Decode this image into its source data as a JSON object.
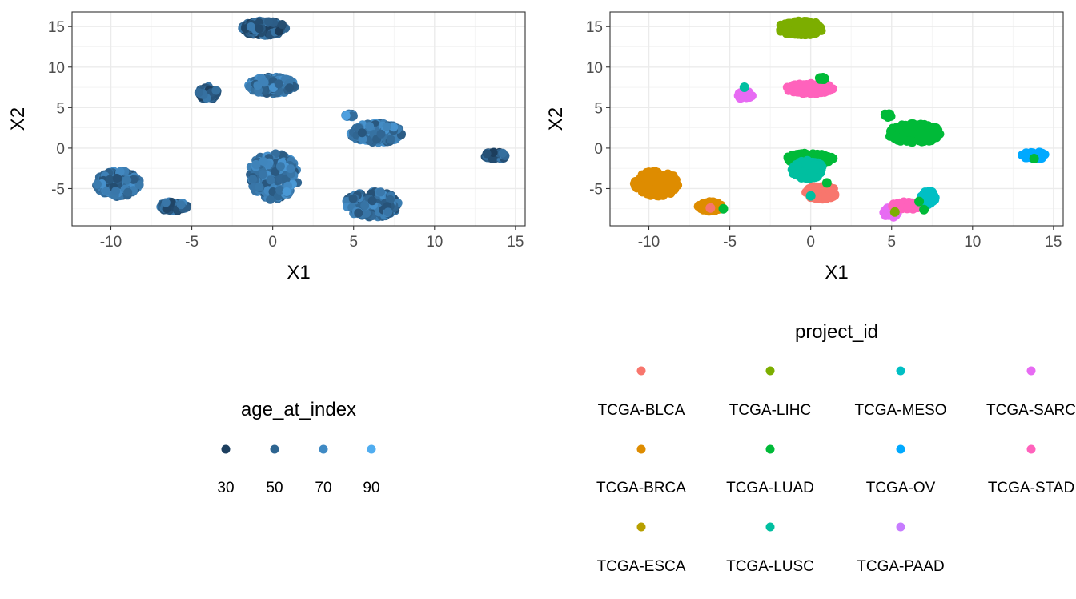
{
  "chart_data": [
    {
      "type": "scatter",
      "xlabel": "X1",
      "ylabel": "X2",
      "xlim": [
        -12.4,
        15.6
      ],
      "ylim": [
        -9.6,
        16.8
      ],
      "x_ticks": [
        -10,
        -5,
        0,
        5,
        10,
        15
      ],
      "y_ticks": [
        -5,
        0,
        5,
        10,
        15
      ],
      "x_tick_labels": [
        "-10",
        "-5",
        "0",
        "5",
        "10",
        "15"
      ],
      "y_tick_labels": [
        "-5",
        "0",
        "5",
        "10",
        "15"
      ],
      "grid": true,
      "legend": {
        "title": "age_at_index",
        "position": "bottom",
        "type": "continuous",
        "range": [
          20,
          100
        ],
        "color_low": "#132b43",
        "color_high": "#56b1f7",
        "entries": [
          {
            "label": "30",
            "value": 30,
            "color": "#1d3f5f"
          },
          {
            "label": "50",
            "value": 50,
            "color": "#2e6591"
          },
          {
            "label": "70",
            "value": 70,
            "color": "#3f8ac4"
          },
          {
            "label": "90",
            "value": 90,
            "color": "#50adf0"
          }
        ]
      },
      "clusters": [
        {
          "x": [
            -10.9,
            -8.2
          ],
          "y": [
            -6.0,
            -2.8
          ],
          "value": 60
        },
        {
          "x": [
            -7.0,
            -5.3
          ],
          "y": [
            -7.8,
            -6.6
          ],
          "value": 55
        },
        {
          "x": [
            -4.6,
            -3.4
          ],
          "y": [
            6.0,
            7.6
          ],
          "value": 50
        },
        {
          "x": [
            -2.0,
            0.8
          ],
          "y": [
            13.9,
            15.7
          ],
          "value": 50
        },
        {
          "x": [
            -1.5,
            1.4
          ],
          "y": [
            6.7,
            8.8
          ],
          "value": 65
        },
        {
          "x": [
            -1.5,
            1.6
          ],
          "y": [
            -6.4,
            -0.6
          ],
          "value": 65
        },
        {
          "x": [
            4.5,
            5.0
          ],
          "y": [
            3.8,
            4.3
          ],
          "value": 70
        },
        {
          "x": [
            4.8,
            8.0
          ],
          "y": [
            0.6,
            3.1
          ],
          "value": 65
        },
        {
          "x": [
            4.5,
            7.8
          ],
          "y": [
            -8.6,
            -5.3
          ],
          "value": 60
        },
        {
          "x": [
            13.0,
            14.5
          ],
          "y": [
            -1.4,
            -0.4
          ],
          "value": 50
        }
      ]
    },
    {
      "type": "scatter",
      "xlabel": "X1",
      "ylabel": "X2",
      "xlim": [
        -12.4,
        15.6
      ],
      "ylim": [
        -9.6,
        16.8
      ],
      "x_ticks": [
        -10,
        -5,
        0,
        5,
        10,
        15
      ],
      "y_ticks": [
        -5,
        0,
        5,
        10,
        15
      ],
      "x_tick_labels": [
        "-10",
        "-5",
        "0",
        "5",
        "10",
        "15"
      ],
      "y_tick_labels": [
        "-5",
        "0",
        "5",
        "10",
        "15"
      ],
      "grid": true,
      "legend": {
        "title": "project_id",
        "position": "bottom",
        "type": "categorical",
        "entries": [
          {
            "label": "TCGA-BLCA",
            "color": "#F8766D"
          },
          {
            "label": "TCGA-BRCA",
            "color": "#DE8C00"
          },
          {
            "label": "TCGA-ESCA",
            "color": "#B79F00"
          },
          {
            "label": "TCGA-LIHC",
            "color": "#7CAE00"
          },
          {
            "label": "TCGA-LUAD",
            "color": "#00BA38"
          },
          {
            "label": "TCGA-LUSC",
            "color": "#00BFA0"
          },
          {
            "label": "TCGA-MESO",
            "color": "#00BFC4"
          },
          {
            "label": "TCGA-OV",
            "color": "#00A9FF"
          },
          {
            "label": "TCGA-PAAD",
            "color": "#C77CFF"
          },
          {
            "label": "TCGA-SARC",
            "color": "#E76BF3"
          },
          {
            "label": "TCGA-STAD",
            "color": "#FF62BC"
          }
        ]
      },
      "clusters": [
        {
          "x": [
            -10.9,
            -8.2
          ],
          "y": [
            -6.0,
            -2.8
          ],
          "group": "TCGA-BRCA"
        },
        {
          "x": [
            -7.0,
            -5.5
          ],
          "y": [
            -7.8,
            -6.6
          ],
          "group": "TCGA-BRCA"
        },
        {
          "x": [
            -4.5,
            -3.6
          ],
          "y": [
            6.0,
            7.0
          ],
          "group": "TCGA-SARC"
        },
        {
          "x": [
            -2.0,
            0.8
          ],
          "y": [
            13.9,
            15.7
          ],
          "group": "TCGA-LIHC"
        },
        {
          "x": [
            -1.5,
            1.4
          ],
          "y": [
            6.7,
            8.0
          ],
          "group": "TCGA-STAD"
        },
        {
          "x": [
            0.5,
            0.9
          ],
          "y": [
            8.4,
            8.8
          ],
          "group": "TCGA-LUAD"
        },
        {
          "x": [
            -1.5,
            1.4
          ],
          "y": [
            -2.0,
            -0.6
          ],
          "group": "TCGA-LUAD"
        },
        {
          "x": [
            -1.2,
            0.8
          ],
          "y": [
            -3.8,
            -1.5
          ],
          "group": "TCGA-LUSC"
        },
        {
          "x": [
            -0.3,
            1.6
          ],
          "y": [
            -6.4,
            -4.6
          ],
          "group": "TCGA-BLCA"
        },
        {
          "x": [
            4.5,
            5.0
          ],
          "y": [
            3.8,
            4.3
          ],
          "group": "TCGA-LUAD"
        },
        {
          "x": [
            4.8,
            8.0
          ],
          "y": [
            0.6,
            3.1
          ],
          "group": "TCGA-LUAD"
        },
        {
          "x": [
            4.5,
            5.4
          ],
          "y": [
            -8.6,
            -7.3
          ],
          "group": "TCGA-SARC"
        },
        {
          "x": [
            5.0,
            7.0
          ],
          "y": [
            -7.6,
            -6.6
          ],
          "group": "TCGA-STAD"
        },
        {
          "x": [
            6.8,
            7.8
          ],
          "y": [
            -7.0,
            -5.3
          ],
          "group": "TCGA-MESO"
        },
        {
          "x": [
            13.0,
            14.5
          ],
          "y": [
            -1.4,
            -0.4
          ],
          "group": "TCGA-OV"
        }
      ],
      "highlights": [
        {
          "x": -4.1,
          "y": 7.5,
          "group": "TCGA-LUSC"
        },
        {
          "x": -5.4,
          "y": -7.5,
          "group": "TCGA-LUAD"
        },
        {
          "x": 13.8,
          "y": -1.3,
          "group": "TCGA-LUAD"
        },
        {
          "x": 0.7,
          "y": 8.6,
          "group": "TCGA-LUAD"
        },
        {
          "x": 0.0,
          "y": -5.9,
          "group": "TCGA-LUSC"
        },
        {
          "x": 5.2,
          "y": -7.9,
          "group": "TCGA-LIHC"
        },
        {
          "x": 6.7,
          "y": -6.6,
          "group": "TCGA-LUAD"
        },
        {
          "x": 7.0,
          "y": -7.6,
          "group": "TCGA-LUAD"
        },
        {
          "x": 1.0,
          "y": -4.3,
          "group": "TCGA-LUAD"
        },
        {
          "x": -6.2,
          "y": -7.4,
          "group": "TCGA-BLCA"
        }
      ]
    }
  ]
}
